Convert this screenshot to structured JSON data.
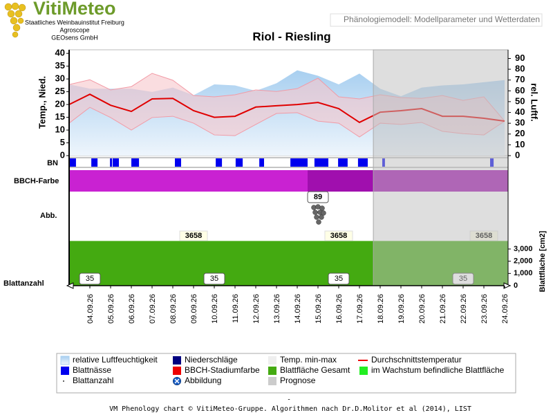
{
  "header": {
    "logo": "VitiMeteo",
    "org_lines": [
      "Staatliches Weinbauinstitut Freiburg",
      "Agroscope",
      "GEOsens GmbH"
    ],
    "page_title": "Phänologiemodell: Modellparameter und Wetterdaten"
  },
  "chart_data": {
    "type": "phenology",
    "title": "Riol - Riesling",
    "categories": [
      null,
      "04.09.26",
      "05.09.26",
      "06.09.26",
      "07.09.26",
      "08.09.26",
      "09.09.26",
      "10.09.26",
      "11.09.26",
      "12.09.26",
      "13.09.26",
      "14.09.26",
      "15.09.26",
      "16.09.26",
      "17.09.26",
      "18.09.26",
      "19.09.26",
      "20.09.26",
      "21.09.26",
      "22.09.26",
      "23.09.26",
      "24.09.26"
    ],
    "ylabel": "Temp., Nied.",
    "ylim": [
      0,
      41.4
    ],
    "yticks": [
      0,
      5,
      10,
      15,
      20,
      25,
      30,
      35,
      40
    ],
    "y2label": "rel. Luftf.",
    "y2lim": [
      0,
      98
    ],
    "y2ticks": [
      0,
      10,
      20,
      30,
      40,
      50,
      60,
      70,
      80,
      90
    ],
    "humidity": {
      "axis": "y2",
      "color": "#a8cff0",
      "values": [
        66,
        62,
        62,
        62,
        59,
        63,
        56,
        66,
        65,
        60,
        67,
        79,
        74,
        66,
        76,
        62,
        55,
        63,
        65,
        66,
        68,
        70
      ]
    },
    "temp_band": {
      "color": "#f7c6cc",
      "line_color": "#f29aa5",
      "max": [
        27.8,
        29.7,
        25.7,
        27,
        32.2,
        29.5,
        23.5,
        23,
        23.8,
        25.7,
        25.1,
        26.2,
        30.3,
        23,
        22.2,
        23.8,
        22.7,
        22.4,
        23.5,
        21.6,
        23,
        13.5
      ],
      "min": [
        12.7,
        18.9,
        14.9,
        10,
        14.9,
        15.4,
        12.7,
        8.1,
        7.8,
        12.2,
        16.5,
        16.8,
        13.5,
        12.7,
        7.3,
        12.7,
        12.2,
        13,
        9.5,
        8.6,
        8.1,
        13.5
      ]
    },
    "temp_mean": {
      "color": "#e00000",
      "values": [
        20,
        24,
        19.7,
        17.3,
        22.2,
        22.4,
        17.6,
        15,
        15.4,
        19,
        19.5,
        20,
        20.8,
        18.4,
        13,
        17,
        17.6,
        18.4,
        15.4,
        15.4,
        14.6,
        13.5
      ]
    },
    "row_labels": {
      "wetness": "BN",
      "bbch": "BBCH-Farbe",
      "image": "Abb.",
      "count": "Blattanzahl"
    },
    "leaf_wetness": {
      "color": "#0000ee",
      "periods": [
        [
          0.03,
          0.33
        ],
        [
          1.07,
          1.37
        ],
        [
          1.97,
          2.07
        ],
        [
          2.1,
          2.4
        ],
        [
          3.0,
          3.37
        ],
        [
          5.1,
          5.4
        ],
        [
          7.07,
          7.37
        ],
        [
          8.03,
          8.37
        ],
        [
          9.17,
          9.4
        ],
        [
          10.67,
          11.5
        ],
        [
          11.83,
          12.5
        ],
        [
          12.97,
          13.43
        ],
        [
          13.93,
          14.4
        ],
        [
          15.1,
          15.23
        ],
        [
          20.3,
          20.47
        ]
      ]
    },
    "bbch": {
      "stages": [
        {
          "start": 0,
          "end": 11.5,
          "color": "#c922d2"
        },
        {
          "start": 11.5,
          "end": 21.17,
          "color": "#a00fae"
        }
      ],
      "stage": 89,
      "stage_at": 12
    },
    "image_at": 12,
    "leaf_area": {
      "label": "Blattfläche [cm2]",
      "ylim": [
        0,
        3680
      ],
      "yticks": [
        0,
        {
          "value": 1000,
          "label": "1,000"
        },
        {
          "value": 2000,
          "label": "2,000"
        },
        {
          "value": 3000,
          "label": "3,000"
        }
      ],
      "color": "#44aa11",
      "values": [
        3658,
        3658,
        3658,
        3658,
        3658,
        3658,
        3658,
        3658,
        3658,
        3658,
        3658,
        3658,
        3658,
        3658,
        3658,
        3658,
        3658,
        3658,
        3658,
        3658,
        3658,
        3658
      ],
      "value_labels": [
        null,
        null,
        null,
        null,
        null,
        null,
        "3658",
        null,
        null,
        null,
        null,
        null,
        null,
        "3658",
        null,
        null,
        null,
        null,
        null,
        null,
        "3658",
        null
      ]
    },
    "leaf_count": {
      "values": [
        null,
        35,
        null,
        null,
        null,
        null,
        null,
        35,
        null,
        null,
        null,
        null,
        null,
        35,
        null,
        null,
        null,
        null,
        null,
        35,
        null,
        null
      ]
    },
    "forecast_start": 14.67
  },
  "legend": [
    {
      "label": "relative Luftfeuchtigkeit",
      "color": "#a8cff0",
      "kind": "gradient"
    },
    {
      "label": "Niederschläge",
      "color": "#000080",
      "kind": "square"
    },
    {
      "label": "Temp. min-max",
      "color": "#eeeeee",
      "kind": "square"
    },
    {
      "label": "Durchschnittstemperatur",
      "color": "#ee0000",
      "kind": "line"
    },
    {
      "label": "Blattnässe",
      "color": "#0000ee",
      "kind": "square"
    },
    {
      "label": "BBCH-Stadiumfarbe",
      "color": "#ee0000",
      "kind": "square"
    },
    {
      "label": "Blattfläche Gesamt",
      "color": "#44aa11",
      "kind": "square"
    },
    {
      "label": "im Wachstum befindliche Blattfläche",
      "color": "#22ee22",
      "kind": "square"
    },
    {
      "label": "Blattanzahl",
      "color": "#333333",
      "kind": "dot"
    },
    {
      "label": "Abbildung",
      "color": "#1a5fc8",
      "kind": "circle"
    },
    {
      "label": "Prognose",
      "color": "#cccccc",
      "kind": "square"
    }
  ],
  "footer": {
    "dash": "-",
    "text": "VM Phenology chart © VitiMeteo-Gruppe. Algorithmen nach Dr.D.Molitor et al (2014), LIST"
  }
}
